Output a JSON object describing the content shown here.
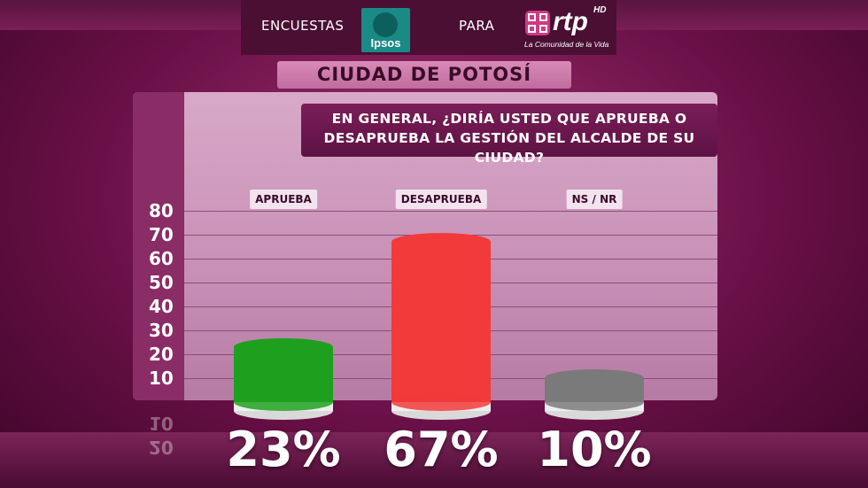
{
  "header": {
    "left_label": "ENCUESTAS",
    "ipsos_logo_text": "Ipsos",
    "middle_label": "PARA",
    "rtp_logo_text": "rtp",
    "rtp_hd": "HD",
    "rtp_tagline": "La Comunidad de la Vida"
  },
  "city_title": "CIUDAD DE POTOSÍ",
  "question_line1": "EN GENERAL, ¿DIRÍA USTED QUE APRUEBA O",
  "question_line2": "DESAPRUEBA LA GESTIÓN DEL ALCALDE DE SU CIUDAD?",
  "chart_data": {
    "type": "bar",
    "categories": [
      "APRUEBA",
      "DESAPRUEBA",
      "NS / NR"
    ],
    "values": [
      23,
      67,
      10
    ],
    "value_labels": [
      "23%",
      "67%",
      "10%"
    ],
    "colors": [
      "#1ea01e",
      "#f23a3a",
      "#7a7a7a"
    ],
    "ylim": [
      0,
      80
    ],
    "yticks": [
      10,
      20,
      30,
      40,
      50,
      60,
      70,
      80
    ],
    "reflected_ticks": [
      "10",
      "20"
    ],
    "grid": true,
    "legend": "none"
  }
}
